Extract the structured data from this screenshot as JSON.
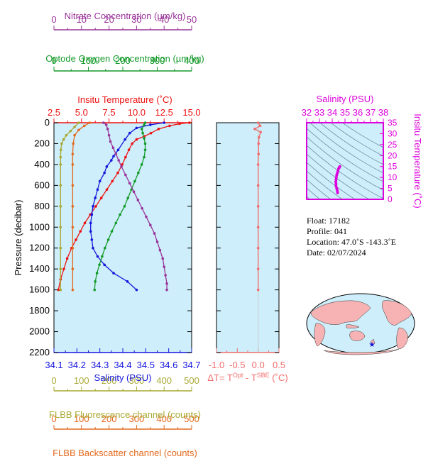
{
  "colors": {
    "nitrate": "#993399",
    "oxygen": "#159a2a",
    "temperature": "#ee1111",
    "salinity": "#1515dd",
    "fluorescence": "#a8a832",
    "backscatter": "#e46a1e",
    "dT": "#f26b6b",
    "ts_axis": "#dd00dd",
    "panel_bg": "#cdeefa",
    "land": "#f7b3b3"
  },
  "axes": {
    "nitrate": {
      "label": "Nitrate Concentration (µm/kg)",
      "range": [
        0,
        50
      ],
      "ticks": [
        "0",
        "10",
        "20",
        "30",
        "40",
        "50"
      ]
    },
    "oxygen": {
      "label": "Optode Oxygen Concentration (µm/kg)",
      "range": [
        0,
        400
      ],
      "ticks": [
        "0",
        "100",
        "200",
        "300",
        "400"
      ]
    },
    "temperature": {
      "label": "Insitu Temperature (˚C)",
      "range": [
        2.5,
        15.0
      ],
      "ticks": [
        "2.5",
        "5.0",
        "7.5",
        "10.0",
        "12.5",
        "15.0"
      ]
    },
    "salinity": {
      "label": "Salinity (PSU)",
      "range": [
        34.1,
        34.7
      ],
      "ticks": [
        "34.1",
        "34.2",
        "34.3",
        "34.4",
        "34.5",
        "34.6",
        "34.7"
      ]
    },
    "fluorescence": {
      "label": "FLBB Fluorescence channel (counts)",
      "range": [
        0,
        500
      ],
      "ticks": [
        "0",
        "100",
        "200",
        "300",
        "400",
        "500"
      ]
    },
    "backscatter": {
      "label": "FLBB Backscatter channel (counts)",
      "range": [
        0,
        500
      ],
      "ticks": [
        "0",
        "100",
        "200",
        "300",
        "400",
        "500"
      ]
    },
    "pressure": {
      "label": "Pressure (decibar)",
      "range": [
        0,
        2200
      ],
      "ticks": [
        "0",
        "200",
        "400",
        "600",
        "800",
        "1000",
        "1200",
        "1400",
        "1600",
        "1800",
        "2000",
        "2200"
      ]
    },
    "dT": {
      "label_prefix": "ΔT= T",
      "label_sup1": "Opt",
      "label_mid": " - T",
      "label_sup2": "SBE",
      "label_suffix": " (˚C)",
      "range": [
        -1.0,
        0.5
      ],
      "ticks": [
        "-1.0",
        "-0.5",
        "0.0",
        "0.5"
      ]
    },
    "ts_salinity": {
      "label": "Salinity (PSU)",
      "range": [
        32,
        38
      ],
      "ticks": [
        "32",
        "33",
        "34",
        "35",
        "36",
        "37",
        "38"
      ]
    },
    "ts_temperature": {
      "label": "Insitu Temperature (˚C)",
      "range": [
        0,
        35
      ],
      "ticks": [
        "0",
        "5",
        "10",
        "15",
        "20",
        "25",
        "30",
        "35"
      ]
    }
  },
  "info": {
    "float": "Float:  17182",
    "profile": "Profile:  041",
    "location": "Location:  47.0˚S  -143.3˚E",
    "date": "Date:  02/07/2024"
  },
  "map": {
    "marker": "★",
    "lat": -47.0,
    "lon": -143.3
  },
  "chart_data": {
    "type": "line",
    "y_axis": "pressure",
    "y_reversed": true,
    "grid": false,
    "series": [
      {
        "key": "temperature",
        "axis": "temperature",
        "marker": "dot",
        "points": [
          [
            14.8,
            0
          ],
          [
            13.9,
            10
          ],
          [
            13.0,
            30
          ],
          [
            12.0,
            60
          ],
          [
            11.3,
            100
          ],
          [
            10.7,
            130
          ],
          [
            10.0,
            160
          ],
          [
            9.6,
            200
          ],
          [
            9.3,
            260
          ],
          [
            9.0,
            330
          ],
          [
            8.7,
            400
          ],
          [
            8.3,
            480
          ],
          [
            7.8,
            560
          ],
          [
            7.3,
            640
          ],
          [
            6.8,
            720
          ],
          [
            6.3,
            800
          ],
          [
            5.8,
            880
          ],
          [
            5.3,
            960
          ],
          [
            4.9,
            1040
          ],
          [
            4.5,
            1120
          ],
          [
            4.1,
            1200
          ],
          [
            3.7,
            1300
          ],
          [
            3.4,
            1400
          ],
          [
            3.1,
            1500
          ],
          [
            2.9,
            1600
          ]
        ]
      },
      {
        "key": "salinity",
        "axis": "salinity",
        "marker": "dot",
        "points": [
          [
            34.58,
            0
          ],
          [
            34.52,
            20
          ],
          [
            34.46,
            50
          ],
          [
            34.43,
            100
          ],
          [
            34.41,
            160
          ],
          [
            34.38,
            260
          ],
          [
            34.36,
            320
          ],
          [
            34.35,
            360
          ],
          [
            34.33,
            420
          ],
          [
            34.32,
            480
          ],
          [
            34.3,
            560
          ],
          [
            34.29,
            640
          ],
          [
            34.28,
            720
          ],
          [
            34.27,
            800
          ],
          [
            34.265,
            880
          ],
          [
            34.26,
            960
          ],
          [
            34.26,
            1040
          ],
          [
            34.265,
            1120
          ],
          [
            34.27,
            1200
          ],
          [
            34.29,
            1280
          ],
          [
            34.32,
            1360
          ],
          [
            34.36,
            1440
          ],
          [
            34.42,
            1520
          ],
          [
            34.46,
            1600
          ]
        ]
      },
      {
        "key": "oxygen",
        "axis": "oxygen",
        "marker": "dot",
        "points": [
          [
            265,
            0
          ],
          [
            262,
            20
          ],
          [
            255,
            60
          ],
          [
            258,
            100
          ],
          [
            262,
            150
          ],
          [
            265,
            200
          ],
          [
            265,
            260
          ],
          [
            262,
            330
          ],
          [
            255,
            400
          ],
          [
            245,
            480
          ],
          [
            235,
            560
          ],
          [
            225,
            640
          ],
          [
            215,
            720
          ],
          [
            205,
            800
          ],
          [
            192,
            880
          ],
          [
            180,
            960
          ],
          [
            168,
            1040
          ],
          [
            158,
            1120
          ],
          [
            148,
            1200
          ],
          [
            140,
            1280
          ],
          [
            132,
            1360
          ],
          [
            125,
            1440
          ],
          [
            120,
            1520
          ],
          [
            118,
            1600
          ]
        ]
      },
      {
        "key": "nitrate",
        "axis": "nitrate",
        "marker": "dot",
        "points": [
          [
            18,
            0
          ],
          [
            19,
            20
          ],
          [
            19.5,
            60
          ],
          [
            20,
            120
          ],
          [
            20.5,
            180
          ],
          [
            21.5,
            240
          ],
          [
            22.5,
            300
          ],
          [
            23.5,
            360
          ],
          [
            24.5,
            420
          ],
          [
            26,
            500
          ],
          [
            27.5,
            580
          ],
          [
            29,
            660
          ],
          [
            30.5,
            740
          ],
          [
            32,
            820
          ],
          [
            33.5,
            900
          ],
          [
            35,
            980
          ],
          [
            36.5,
            1060
          ],
          [
            37.5,
            1140
          ],
          [
            38.5,
            1220
          ],
          [
            39.5,
            1300
          ],
          [
            40,
            1380
          ],
          [
            40.5,
            1460
          ],
          [
            41,
            1540
          ],
          [
            41,
            1600
          ]
        ]
      },
      {
        "key": "fluorescence",
        "axis": "fluorescence",
        "marker": "dot",
        "points": [
          [
            90,
            0
          ],
          [
            75,
            40
          ],
          [
            60,
            80
          ],
          [
            45,
            120
          ],
          [
            35,
            160
          ],
          [
            28,
            200
          ],
          [
            25,
            260
          ],
          [
            24,
            330
          ],
          [
            24,
            400
          ],
          [
            24,
            600
          ],
          [
            24,
            800
          ],
          [
            24,
            1000
          ],
          [
            24,
            1200
          ],
          [
            24,
            1400
          ],
          [
            24,
            1600
          ]
        ]
      },
      {
        "key": "backscatter",
        "axis": "backscatter",
        "marker": "dot",
        "points": [
          [
            130,
            0
          ],
          [
            110,
            30
          ],
          [
            90,
            70
          ],
          [
            75,
            120
          ],
          [
            70,
            200
          ],
          [
            68,
            300
          ],
          [
            68,
            400
          ],
          [
            68,
            600
          ],
          [
            68,
            800
          ],
          [
            68,
            1000
          ],
          [
            68,
            1200
          ],
          [
            68,
            1400
          ],
          [
            68,
            1600
          ]
        ]
      },
      {
        "key": "dT",
        "axis": "dT",
        "marker": "dot",
        "points": [
          [
            0.0,
            0
          ],
          [
            0.05,
            30
          ],
          [
            -0.08,
            60
          ],
          [
            0.06,
            90
          ],
          [
            0.02,
            140
          ],
          [
            0.01,
            200
          ],
          [
            0.01,
            300
          ],
          [
            0.0,
            400
          ],
          [
            0.0,
            600
          ],
          [
            0.0,
            800
          ],
          [
            0.0,
            1000
          ],
          [
            0.0,
            1200
          ],
          [
            0.0,
            1400
          ],
          [
            0.0,
            1600
          ]
        ]
      },
      {
        "key": "ts",
        "axis": "ts",
        "marker": "dot",
        "points": [
          [
            34.42,
            3.0
          ],
          [
            34.4,
            4.0
          ],
          [
            34.35,
            5.0
          ],
          [
            34.3,
            6.0
          ],
          [
            34.3,
            7.0
          ],
          [
            34.28,
            8.0
          ],
          [
            34.3,
            9.0
          ],
          [
            34.32,
            10.0
          ],
          [
            34.35,
            11.0
          ],
          [
            34.4,
            12.0
          ],
          [
            34.45,
            13.0
          ],
          [
            34.5,
            14.0
          ],
          [
            34.55,
            14.5
          ],
          [
            34.6,
            15.0
          ]
        ]
      }
    ]
  }
}
